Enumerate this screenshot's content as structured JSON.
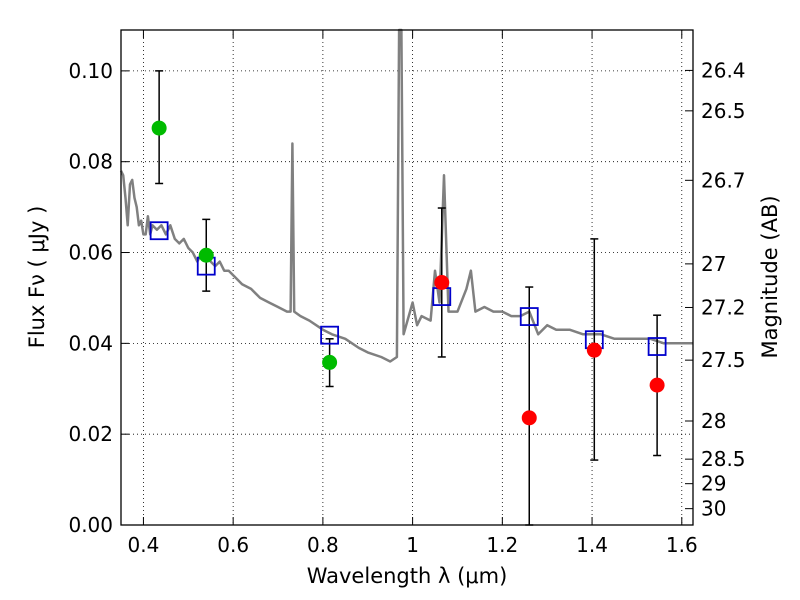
{
  "chart_data": {
    "type": "scatter",
    "xlabel": "Wavelength  λ (μm)",
    "ylabel": "Flux  Fν  ( μJy )",
    "ylabel_right": "Magnitude (AB)",
    "xlim": [
      0.35,
      1.625
    ],
    "ylim": [
      0.0,
      0.109
    ],
    "grid": true,
    "x_ticks": [
      {
        "value": 0.4,
        "label": "0.4"
      },
      {
        "value": 0.6,
        "label": "0.6"
      },
      {
        "value": 0.8,
        "label": "0.8"
      },
      {
        "value": 1.0,
        "label": "1"
      },
      {
        "value": 1.2,
        "label": "1.2"
      },
      {
        "value": 1.4,
        "label": "1.4"
      },
      {
        "value": 1.6,
        "label": "1.6"
      }
    ],
    "y_ticks": [
      {
        "value": 0.0,
        "label": "0.00"
      },
      {
        "value": 0.02,
        "label": "0.02"
      },
      {
        "value": 0.04,
        "label": "0.04"
      },
      {
        "value": 0.06,
        "label": "0.06"
      },
      {
        "value": 0.08,
        "label": "0.08"
      },
      {
        "value": 0.1,
        "label": "0.10"
      }
    ],
    "right_ticks": [
      {
        "label": "26.4",
        "flux": 0.1001
      },
      {
        "label": "26.5",
        "flux": 0.0912
      },
      {
        "label": "26.7",
        "flux": 0.0759
      },
      {
        "label": "27",
        "flux": 0.0575
      },
      {
        "label": "27.2",
        "flux": 0.0479
      },
      {
        "label": "27.5",
        "flux": 0.0363
      },
      {
        "label": "28",
        "flux": 0.0229
      },
      {
        "label": "28.5",
        "flux": 0.0145
      },
      {
        "label": "29",
        "flux": 0.0091
      },
      {
        "label": "30",
        "flux": 0.0036
      }
    ],
    "series": [
      {
        "marker": "square-open",
        "color": "#0000cc",
        "points": [
          {
            "x": 0.435,
            "y": 0.0648
          },
          {
            "x": 0.54,
            "y": 0.057
          },
          {
            "x": 0.815,
            "y": 0.0418
          },
          {
            "x": 1.065,
            "y": 0.0503
          },
          {
            "x": 1.26,
            "y": 0.0459
          },
          {
            "x": 1.405,
            "y": 0.0408
          },
          {
            "x": 1.545,
            "y": 0.0393
          }
        ]
      },
      {
        "marker": "circle",
        "color": "#00bb00",
        "points": [
          {
            "x": 0.435,
            "y": 0.0874,
            "yerr_low": 0.0752,
            "yerr_high": 0.1
          },
          {
            "x": 0.54,
            "y": 0.0594,
            "yerr_low": 0.0515,
            "yerr_high": 0.0673
          },
          {
            "x": 0.815,
            "y": 0.0358,
            "yerr_low": 0.0305,
            "yerr_high": 0.041
          }
        ]
      },
      {
        "marker": "circle",
        "color": "#ff0000",
        "points": [
          {
            "x": 1.065,
            "y": 0.0534,
            "yerr_low": 0.037,
            "yerr_high": 0.0698
          },
          {
            "x": 1.26,
            "y": 0.0236,
            "yerr_low": 0.0,
            "yerr_high": 0.0524
          },
          {
            "x": 1.405,
            "y": 0.0385,
            "yerr_low": 0.0143,
            "yerr_high": 0.063
          },
          {
            "x": 1.545,
            "y": 0.0308,
            "yerr_low": 0.0153,
            "yerr_high": 0.0462
          }
        ]
      },
      {
        "type": "line",
        "color": "#808080",
        "points": [
          [
            0.35,
            0.078
          ],
          [
            0.355,
            0.077
          ],
          [
            0.36,
            0.072
          ],
          [
            0.365,
            0.066
          ],
          [
            0.37,
            0.075
          ],
          [
            0.375,
            0.076
          ],
          [
            0.38,
            0.072
          ],
          [
            0.385,
            0.07
          ],
          [
            0.39,
            0.066
          ],
          [
            0.395,
            0.067
          ],
          [
            0.4,
            0.064
          ],
          [
            0.405,
            0.064
          ],
          [
            0.41,
            0.068
          ],
          [
            0.415,
            0.064
          ],
          [
            0.42,
            0.066
          ],
          [
            0.43,
            0.065
          ],
          [
            0.44,
            0.066
          ],
          [
            0.45,
            0.064
          ],
          [
            0.46,
            0.066
          ],
          [
            0.47,
            0.063
          ],
          [
            0.48,
            0.062
          ],
          [
            0.49,
            0.063
          ],
          [
            0.5,
            0.061
          ],
          [
            0.51,
            0.06
          ],
          [
            0.52,
            0.058
          ],
          [
            0.53,
            0.06
          ],
          [
            0.54,
            0.059
          ],
          [
            0.55,
            0.058
          ],
          [
            0.56,
            0.057
          ],
          [
            0.57,
            0.058
          ],
          [
            0.58,
            0.056
          ],
          [
            0.59,
            0.056
          ],
          [
            0.6,
            0.055
          ],
          [
            0.62,
            0.053
          ],
          [
            0.64,
            0.052
          ],
          [
            0.66,
            0.05
          ],
          [
            0.68,
            0.049
          ],
          [
            0.7,
            0.048
          ],
          [
            0.72,
            0.047
          ],
          [
            0.728,
            0.047
          ],
          [
            0.732,
            0.084
          ],
          [
            0.736,
            0.047
          ],
          [
            0.75,
            0.046
          ],
          [
            0.77,
            0.045
          ],
          [
            0.8,
            0.043
          ],
          [
            0.82,
            0.042
          ],
          [
            0.85,
            0.041
          ],
          [
            0.88,
            0.039
          ],
          [
            0.9,
            0.038
          ],
          [
            0.93,
            0.037
          ],
          [
            0.95,
            0.036
          ],
          [
            0.965,
            0.037
          ],
          [
            0.97,
            0.109
          ],
          [
            0.975,
            0.109
          ],
          [
            0.98,
            0.042
          ],
          [
            1.0,
            0.049
          ],
          [
            1.01,
            0.044
          ],
          [
            1.02,
            0.046
          ],
          [
            1.04,
            0.045
          ],
          [
            1.05,
            0.056
          ],
          [
            1.06,
            0.049
          ],
          [
            1.07,
            0.077
          ],
          [
            1.08,
            0.047
          ],
          [
            1.1,
            0.047
          ],
          [
            1.12,
            0.052
          ],
          [
            1.13,
            0.056
          ],
          [
            1.14,
            0.047
          ],
          [
            1.16,
            0.048
          ],
          [
            1.18,
            0.047
          ],
          [
            1.2,
            0.047
          ],
          [
            1.22,
            0.046
          ],
          [
            1.24,
            0.046
          ],
          [
            1.26,
            0.047
          ],
          [
            1.28,
            0.042
          ],
          [
            1.3,
            0.044
          ],
          [
            1.32,
            0.043
          ],
          [
            1.35,
            0.043
          ],
          [
            1.38,
            0.042
          ],
          [
            1.4,
            0.042
          ],
          [
            1.42,
            0.042
          ],
          [
            1.45,
            0.041
          ],
          [
            1.48,
            0.041
          ],
          [
            1.5,
            0.041
          ],
          [
            1.53,
            0.041
          ],
          [
            1.56,
            0.04
          ],
          [
            1.58,
            0.04
          ],
          [
            1.6,
            0.04
          ],
          [
            1.625,
            0.04
          ]
        ]
      }
    ]
  }
}
